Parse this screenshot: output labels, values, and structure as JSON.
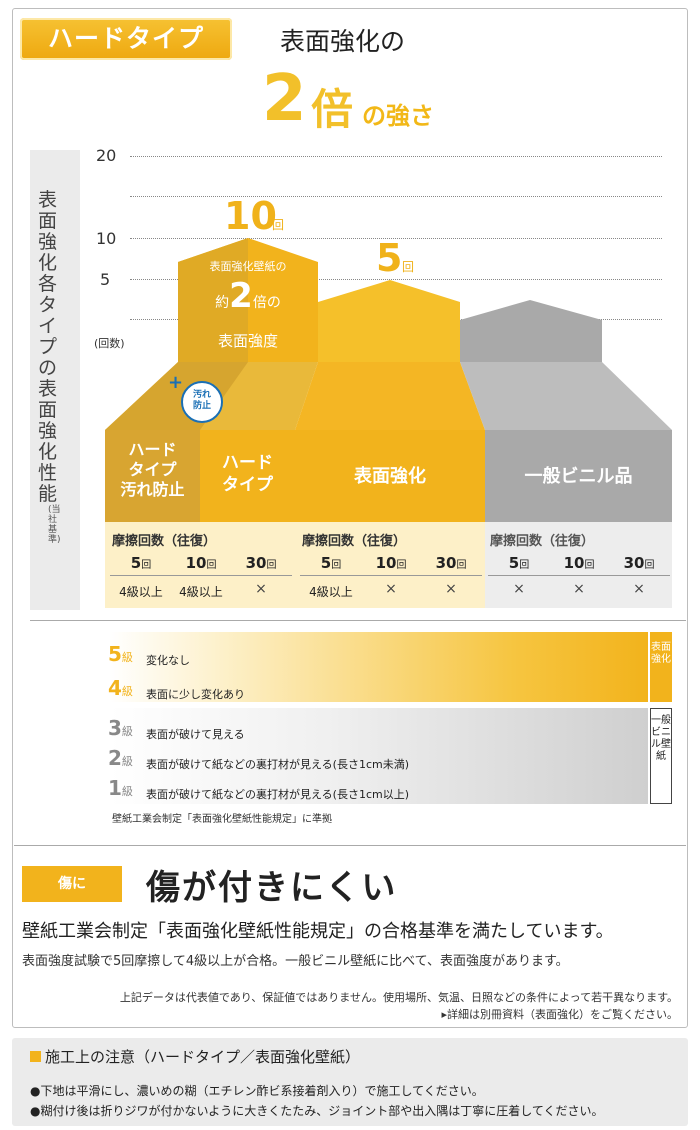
{
  "header": {
    "badge": "ハードタイプ",
    "heading": "表面強化の",
    "big_number": "2",
    "big_unit": "倍",
    "big_suffix": "の強さ"
  },
  "chart": {
    "side_title": "表面強化各タイプの表面強化性能",
    "side_note": "(当社基準)",
    "y_ticks": [
      "20",
      "10",
      "5"
    ],
    "y_unit": "(回数)",
    "value1": "10",
    "value1_unit": "回",
    "value2": "5",
    "value2_unit": "回",
    "top_text_line1": "表面強化壁紙の",
    "top_text_pre": "約",
    "top_text_num": "2",
    "top_text_post": "倍の",
    "top_text_line3": "表面強度",
    "plus": "+",
    "stain_line1": "汚れ",
    "stain_line2": "防止"
  },
  "columns": {
    "col1_line1": "ハード",
    "col1_line2": "タイプ",
    "col1_line3": "汚れ防止",
    "col2_line1": "ハード",
    "col2_line2": "タイプ",
    "col3": "表面強化",
    "col4": "一般ビニル品"
  },
  "table": {
    "caption": "摩擦回数（往復）",
    "headers": [
      "5",
      "10",
      "30"
    ],
    "unit": "回",
    "group1": [
      "4級以上",
      "4級以上",
      "×"
    ],
    "group2": [
      "4級以上",
      "×",
      "×"
    ],
    "group3": [
      "×",
      "×",
      "×"
    ]
  },
  "legend": {
    "grades": [
      {
        "num": "5",
        "kyu": "級",
        "desc": "変化なし"
      },
      {
        "num": "4",
        "kyu": "級",
        "desc": "表面に少し変化あり"
      },
      {
        "num": "3",
        "kyu": "級",
        "desc": "表面が破けて見える"
      },
      {
        "num": "2",
        "kyu": "級",
        "desc": "表面が破けて紙などの裏打材が見える(長さ1cm未満)"
      },
      {
        "num": "1",
        "kyu": "級",
        "desc": "表面が破けて紙などの裏打材が見える(長さ1cm以上)"
      }
    ],
    "tag1": "表面強化",
    "tag2": "一般ビニル壁紙",
    "footnote": "壁紙工業会制定「表面強化壁紙性能規定」に準拠"
  },
  "feature": {
    "tag": "傷に",
    "title": "傷が付きにくい",
    "para1": "壁紙工業会制定「表面強化壁紙性能規定」の合格基準を満たしています。",
    "para2": "表面強度試験で5回摩擦して4級以上が合格。一般ビニル壁紙に比べて、表面強度があります。",
    "note1": "上記データは代表値であり、保証値ではありません。使用場所、気温、日照などの条件によって若干異なります。",
    "note2": "▸詳細は別冊資料（表面強化）をご覧ください。"
  },
  "caution": {
    "title": "施工上の注意（ハードタイプ／表面強化壁紙）",
    "lines": [
      "●下地は平滑にし、濃いめの糊（エチレン酢ビ系接着剤入り）で施工してください。",
      "●糊付け後は折りジワが付かないように大きくたたみ、ジョイント部や出入隅は丁寧に圧着してください。"
    ]
  },
  "colors": {
    "yellow": "#f2b31c",
    "yellow_dark": "#d9a51f",
    "gray": "#a9a9a9",
    "gray_light": "#c9c9c9"
  }
}
